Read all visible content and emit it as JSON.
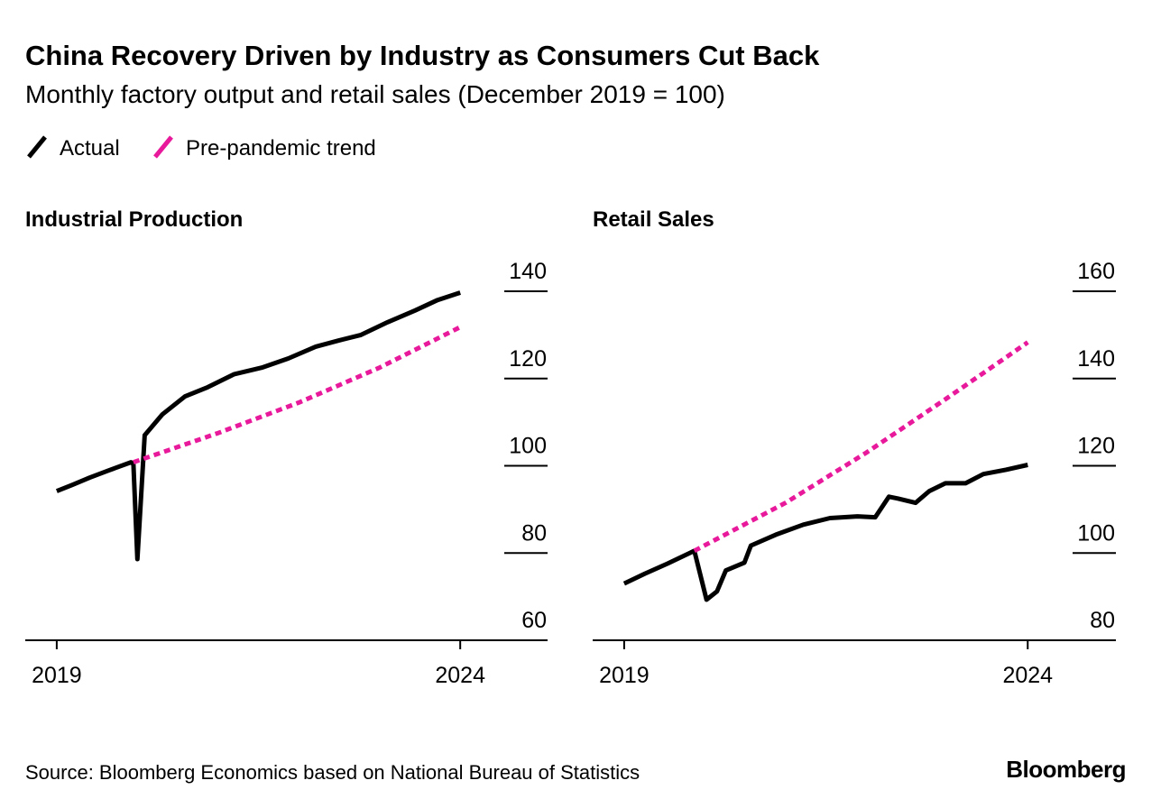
{
  "title": "China Recovery Driven by Industry as Consumers Cut Back",
  "subtitle": "Monthly factory output and retail sales (December 2019 = 100)",
  "source": "Source: Bloomberg Economics based on National Bureau of Statistics",
  "logo": "Bloomberg",
  "chart_data": [
    {
      "type": "line",
      "title": "Industrial Production",
      "xlim": [
        2018.61,
        2025.06
      ],
      "xticks": [
        2019,
        2024
      ],
      "ylim": [
        60,
        140
      ],
      "yticks": [
        60,
        80,
        100,
        120,
        140
      ],
      "series": [
        {
          "name": "Actual",
          "color": "#000000",
          "dashed": false,
          "x": [
            2019.0,
            2019.19,
            2019.41,
            2019.64,
            2019.92,
            2019.95,
            2020.0,
            2020.09,
            2020.31,
            2020.59,
            2020.87,
            2021.2,
            2021.54,
            2021.87,
            2022.21,
            2022.49,
            2022.77,
            2023.1,
            2023.44,
            2023.72,
            2024.0
          ],
          "values": [
            94.2,
            95.6,
            97.3,
            98.9,
            100.8,
            100.4,
            78.6,
            107,
            111.8,
            115.9,
            118,
            121,
            122.5,
            124.6,
            127.3,
            128.7,
            130,
            132.9,
            135.6,
            138,
            139.7
          ]
        },
        {
          "name": "Pre-pandemic trend",
          "color": "#e8199b",
          "dashed": true,
          "x": [
            2019.95,
            2021,
            2022,
            2023,
            2024.0
          ],
          "values": [
            100.8,
            107.5,
            114.5,
            122.5,
            131.8
          ]
        }
      ]
    },
    {
      "type": "line",
      "title": "Retail Sales",
      "xlim": [
        2018.61,
        2025.07
      ],
      "xticks": [
        2019,
        2024
      ],
      "ylim": [
        80,
        160
      ],
      "yticks": [
        80,
        100,
        120,
        140,
        160
      ],
      "series": [
        {
          "name": "Actual",
          "color": "#000000",
          "dashed": false,
          "x": [
            2019.0,
            2019.26,
            2019.54,
            2019.87,
            2020.02,
            2020.15,
            2020.26,
            2020.49,
            2020.57,
            2020.88,
            2021.22,
            2021.55,
            2021.89,
            2022.11,
            2022.28,
            2022.39,
            2022.61,
            2022.78,
            2022.98,
            2023.23,
            2023.45,
            2023.73,
            2024.0
          ],
          "values": [
            93,
            95.3,
            97.6,
            100.5,
            89.3,
            91.2,
            96,
            97.8,
            101.7,
            104.2,
            106.5,
            108,
            108.4,
            108.2,
            112.9,
            112.5,
            111.5,
            114.2,
            116,
            116,
            118.1,
            119.1,
            120.2
          ]
        },
        {
          "name": "Pre-pandemic trend",
          "color": "#e8199b",
          "dashed": true,
          "x": [
            2019.87,
            2021,
            2022,
            2023,
            2024.0
          ],
          "values": [
            100.5,
            111.5,
            123,
            135.5,
            148.3
          ]
        }
      ]
    }
  ]
}
